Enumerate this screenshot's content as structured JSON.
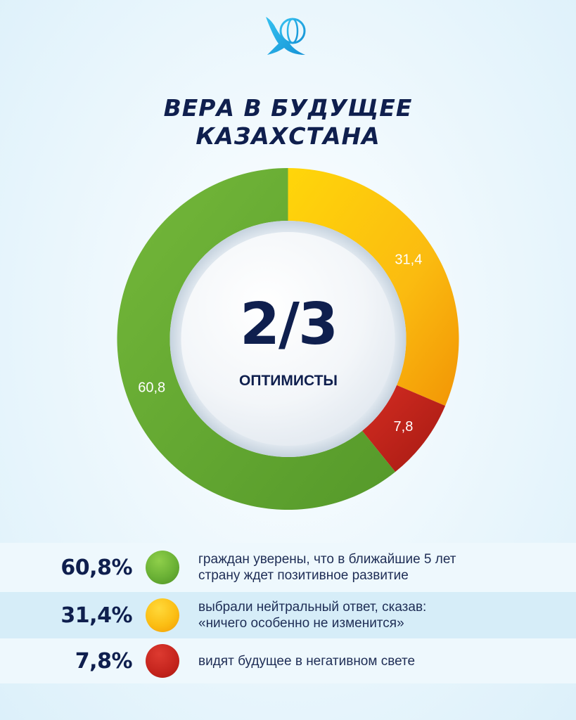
{
  "logo": {
    "icon": "eagle-globe-icon",
    "color": "#1aa7e0"
  },
  "title": {
    "line1": "ВЕРА В БУДУЩЕЕ",
    "line2": "КАЗАХСТАНА"
  },
  "center": {
    "value": "2/3",
    "label": "ОПТИМИСТЫ"
  },
  "chart_data": {
    "type": "pie",
    "title": "ВЕРА В БУДУЩЕЕ КАЗАХСТАНА",
    "categories": [
      "",
      "",
      ""
    ],
    "values": [
      60.8,
      31.4,
      7.8
    ],
    "data_labels": [
      "60,8",
      "31,4",
      "7,8"
    ],
    "colors": [
      "#6ab135",
      "#fbbe14",
      "#c4241d"
    ],
    "donut": true,
    "start": "top, clockwise from yellow"
  },
  "legend": [
    {
      "percent": "60,8%",
      "color": "green",
      "line1": "граждан уверены, что в ближайшие 5 лет",
      "line2": "страну ждет позитивное развитие"
    },
    {
      "percent": "31,4%",
      "color": "yellow",
      "line1": "выбрали нейтральный ответ, сказав:",
      "line2": "«ничего особенно не изменится»"
    },
    {
      "percent": "7,8%",
      "color": "red",
      "line1": "видят будущее в негативном свете",
      "line2": ""
    }
  ]
}
